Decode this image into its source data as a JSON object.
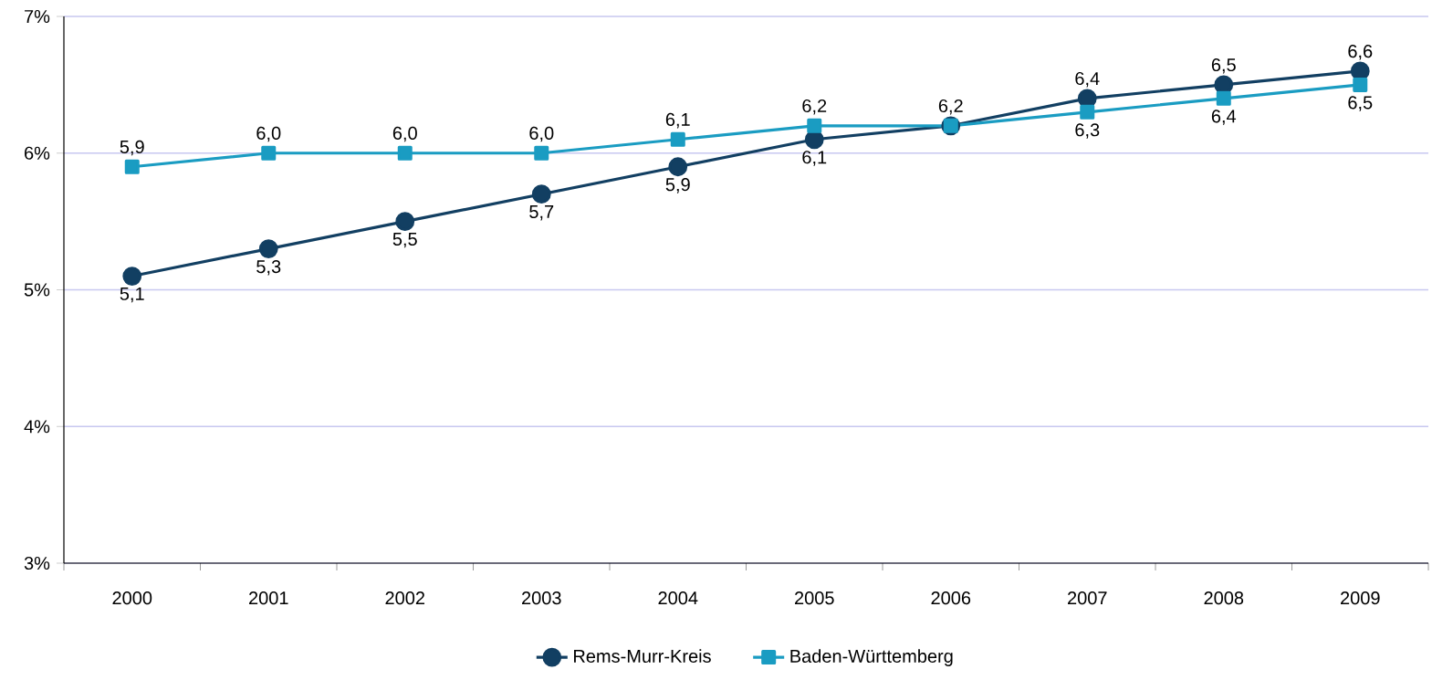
{
  "chart_data": {
    "type": "line",
    "categories": [
      "2000",
      "2001",
      "2002",
      "2003",
      "2004",
      "2005",
      "2006",
      "2007",
      "2008",
      "2009"
    ],
    "series": [
      {
        "name": "Rems-Murr-Kreis",
        "color": "#123f62",
        "marker": "circle",
        "values": [
          5.1,
          5.3,
          5.5,
          5.7,
          5.9,
          6.1,
          6.2,
          6.4,
          6.5,
          6.6
        ],
        "value_labels": [
          "5,1",
          "5,3",
          "5,5",
          "5,7",
          "5,9",
          "6,1",
          null,
          "6,4",
          "6,5",
          "6,6"
        ]
      },
      {
        "name": "Baden-Württemberg",
        "color": "#1a9cc2",
        "marker": "square",
        "values": [
          5.9,
          6.0,
          6.0,
          6.0,
          6.1,
          6.2,
          6.2,
          6.3,
          6.4,
          6.5
        ],
        "value_labels": [
          "5,9",
          "6,0",
          "6,0",
          "6,0",
          "6,1",
          "6,2",
          "6,2",
          "6,3",
          "6,4",
          "6,5"
        ]
      }
    ],
    "ylim": [
      3,
      7
    ],
    "yticks": [
      {
        "value": 3,
        "label": "3%"
      },
      {
        "value": 4,
        "label": "4%"
      },
      {
        "value": 5,
        "label": "5%"
      },
      {
        "value": 6,
        "label": "6%"
      },
      {
        "value": 7,
        "label": "7%"
      }
    ],
    "grid": "y",
    "legend": "bottom",
    "line_style": "solid"
  }
}
